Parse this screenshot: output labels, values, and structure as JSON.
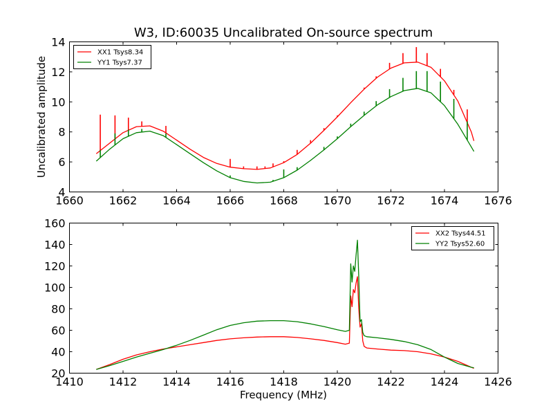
{
  "chart_data": [
    {
      "type": "line",
      "title": "W3, ID:60035 Uncalibrated On-source spectrum",
      "xlabel": "",
      "ylabel": "Uncalibrated amplitude",
      "xlim": [
        1660,
        1676
      ],
      "ylim": [
        4,
        14
      ],
      "xticks": [
        "1660",
        "1662",
        "1664",
        "1666",
        "1668",
        "1670",
        "1672",
        "1674",
        "1676"
      ],
      "yticks": [
        "4",
        "6",
        "8",
        "10",
        "12",
        "14"
      ],
      "legend_position": "top-left",
      "series": [
        {
          "name": "XX1 Tsys8.34",
          "color": "#ff0000",
          "x": [
            1661.0,
            1661.5,
            1662.0,
            1662.5,
            1663.0,
            1663.5,
            1664.0,
            1664.5,
            1665.0,
            1665.5,
            1666.0,
            1666.5,
            1667.0,
            1667.5,
            1668.0,
            1668.5,
            1669.0,
            1669.5,
            1670.0,
            1670.5,
            1671.0,
            1671.5,
            1672.0,
            1672.5,
            1673.0,
            1673.5,
            1674.0,
            1674.5,
            1675.0,
            1675.1
          ],
          "y": [
            6.55,
            7.25,
            7.95,
            8.35,
            8.4,
            8.05,
            7.45,
            6.85,
            6.3,
            5.9,
            5.65,
            5.55,
            5.5,
            5.6,
            5.95,
            6.5,
            7.25,
            8.1,
            9.0,
            9.95,
            10.85,
            11.65,
            12.25,
            12.6,
            12.65,
            12.3,
            11.4,
            10.05,
            8.0,
            7.4
          ],
          "spikes": [
            {
              "x": 1661.15,
              "y": 9.15
            },
            {
              "x": 1661.7,
              "y": 9.1
            },
            {
              "x": 1662.2,
              "y": 8.95
            },
            {
              "x": 1662.7,
              "y": 8.7
            },
            {
              "x": 1663.6,
              "y": 8.4
            },
            {
              "x": 1666.0,
              "y": 6.2
            },
            {
              "x": 1666.5,
              "y": 5.7
            },
            {
              "x": 1667.0,
              "y": 5.7
            },
            {
              "x": 1667.3,
              "y": 5.7
            },
            {
              "x": 1667.6,
              "y": 5.9
            },
            {
              "x": 1668.0,
              "y": 6.05
            },
            {
              "x": 1668.5,
              "y": 6.8
            },
            {
              "x": 1669.0,
              "y": 7.45
            },
            {
              "x": 1669.5,
              "y": 8.25
            },
            {
              "x": 1670.0,
              "y": 9.1
            },
            {
              "x": 1670.5,
              "y": 9.95
            },
            {
              "x": 1671.0,
              "y": 10.95
            },
            {
              "x": 1671.45,
              "y": 11.7
            },
            {
              "x": 1671.95,
              "y": 12.6
            },
            {
              "x": 1672.45,
              "y": 13.25
            },
            {
              "x": 1672.95,
              "y": 13.65
            },
            {
              "x": 1673.35,
              "y": 13.25
            },
            {
              "x": 1673.85,
              "y": 12.2
            },
            {
              "x": 1674.35,
              "y": 10.8
            },
            {
              "x": 1674.85,
              "y": 9.5
            }
          ]
        },
        {
          "name": "YY1 Tsys7.37",
          "color": "#008000",
          "x": [
            1661.0,
            1661.5,
            1662.0,
            1662.5,
            1663.0,
            1663.5,
            1664.0,
            1664.5,
            1665.0,
            1665.5,
            1666.0,
            1666.5,
            1667.0,
            1667.5,
            1668.0,
            1668.5,
            1669.0,
            1669.5,
            1670.0,
            1670.5,
            1671.0,
            1671.5,
            1672.0,
            1672.5,
            1673.0,
            1673.5,
            1674.0,
            1674.5,
            1675.0,
            1675.1
          ],
          "y": [
            6.05,
            6.85,
            7.55,
            7.95,
            8.05,
            7.75,
            7.15,
            6.55,
            5.95,
            5.4,
            4.95,
            4.7,
            4.6,
            4.65,
            4.95,
            5.45,
            6.1,
            6.8,
            7.55,
            8.35,
            9.1,
            9.8,
            10.35,
            10.75,
            10.9,
            10.6,
            9.75,
            8.5,
            7.0,
            6.7
          ],
          "spikes": [
            {
              "x": 1661.15,
              "y": 6.8
            },
            {
              "x": 1661.7,
              "y": 7.9
            },
            {
              "x": 1662.2,
              "y": 8.15
            },
            {
              "x": 1662.7,
              "y": 8.2
            },
            {
              "x": 1663.6,
              "y": 7.9
            },
            {
              "x": 1666.0,
              "y": 5.1
            },
            {
              "x": 1667.6,
              "y": 4.8
            },
            {
              "x": 1668.0,
              "y": 5.5
            },
            {
              "x": 1668.5,
              "y": 5.65
            },
            {
              "x": 1669.5,
              "y": 7.0
            },
            {
              "x": 1670.0,
              "y": 7.7
            },
            {
              "x": 1670.5,
              "y": 8.55
            },
            {
              "x": 1671.0,
              "y": 9.35
            },
            {
              "x": 1671.45,
              "y": 10.05
            },
            {
              "x": 1671.95,
              "y": 10.85
            },
            {
              "x": 1672.45,
              "y": 11.6
            },
            {
              "x": 1672.95,
              "y": 12.05
            },
            {
              "x": 1673.35,
              "y": 12.05
            },
            {
              "x": 1673.85,
              "y": 11.35
            },
            {
              "x": 1674.35,
              "y": 10.2
            },
            {
              "x": 1674.85,
              "y": 8.7
            }
          ]
        }
      ]
    },
    {
      "type": "line",
      "title": "",
      "xlabel": "Frequency (MHz)",
      "ylabel": "",
      "xlim": [
        1410,
        1426
      ],
      "ylim": [
        20,
        160
      ],
      "xticks": [
        "1410",
        "1412",
        "1414",
        "1416",
        "1418",
        "1420",
        "1422",
        "1424",
        "1426"
      ],
      "yticks": [
        "20",
        "40",
        "60",
        "80",
        "100",
        "120",
        "140",
        "160"
      ],
      "legend_position": "top-right",
      "series": [
        {
          "name": "XX2 Tsys44.51",
          "color": "#ff0000",
          "x": [
            1411.0,
            1411.5,
            1412.0,
            1412.5,
            1413.0,
            1413.5,
            1414.0,
            1414.5,
            1415.0,
            1415.5,
            1416.0,
            1416.5,
            1417.0,
            1417.5,
            1418.0,
            1418.5,
            1419.0,
            1419.5,
            1420.0,
            1420.3,
            1420.45,
            1420.5,
            1420.55,
            1420.6,
            1420.65,
            1420.7,
            1420.75,
            1420.8,
            1420.85,
            1420.9,
            1420.95,
            1421.0,
            1421.1,
            1421.5,
            1422.0,
            1422.5,
            1423.0,
            1423.5,
            1424.0,
            1424.5,
            1425.0,
            1425.1
          ],
          "y": [
            23.5,
            28,
            33,
            37,
            40,
            42.5,
            44.5,
            46.5,
            48.5,
            50.5,
            52,
            53,
            53.7,
            54,
            54,
            53.3,
            52,
            50.5,
            48.5,
            47,
            48,
            92,
            82,
            98,
            95,
            104,
            110,
            80,
            63,
            66,
            50,
            45,
            43.5,
            42.5,
            41.5,
            41,
            40,
            38,
            35,
            31,
            25.5,
            24.5
          ]
        },
        {
          "name": "YY2 Tsys52.60",
          "color": "#008000",
          "x": [
            1411.0,
            1411.5,
            1412.0,
            1412.5,
            1413.0,
            1413.5,
            1414.0,
            1414.5,
            1415.0,
            1415.5,
            1416.0,
            1416.5,
            1417.0,
            1417.5,
            1418.0,
            1418.5,
            1419.0,
            1419.5,
            1420.0,
            1420.3,
            1420.45,
            1420.5,
            1420.55,
            1420.6,
            1420.65,
            1420.7,
            1420.75,
            1420.8,
            1420.85,
            1420.9,
            1420.95,
            1421.0,
            1421.1,
            1421.5,
            1422.0,
            1422.5,
            1423.0,
            1423.5,
            1424.0,
            1424.5,
            1425.0,
            1425.1
          ],
          "y": [
            23.5,
            27,
            31,
            35,
            38.5,
            42,
            46,
            50.5,
            55.5,
            60.5,
            64.5,
            67,
            68.5,
            69,
            69,
            68,
            66,
            63.5,
            60.5,
            59,
            60,
            122,
            105,
            120,
            115,
            130,
            144,
            110,
            68,
            70,
            58,
            55,
            54,
            53,
            51.5,
            49.5,
            46.5,
            42,
            35,
            29,
            25.5,
            25
          ]
        }
      ]
    }
  ]
}
